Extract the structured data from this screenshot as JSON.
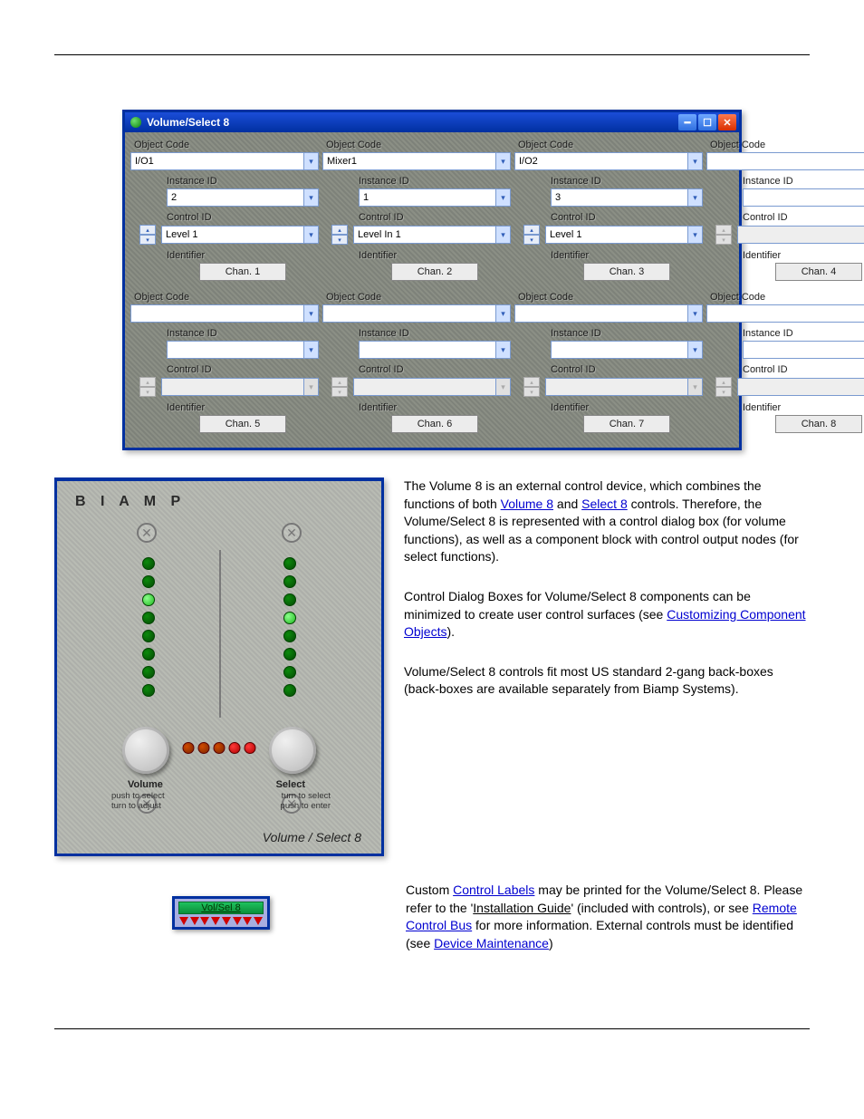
{
  "window": {
    "title": "Volume/Select 8",
    "columns": [
      {
        "objectCode": "I/O1",
        "instanceId": "2",
        "controlId": "Level 1",
        "identifier": "Chan. 1",
        "enabled": true
      },
      {
        "objectCode": "Mixer1",
        "instanceId": "1",
        "controlId": "Level In 1",
        "identifier": "Chan. 2",
        "enabled": true
      },
      {
        "objectCode": "I/O2",
        "instanceId": "3",
        "controlId": "Level 1",
        "identifier": "Chan. 3",
        "enabled": true
      },
      {
        "objectCode": "",
        "instanceId": "",
        "controlId": "",
        "identifier": "Chan. 4",
        "enabled": false
      },
      {
        "objectCode": "",
        "instanceId": "",
        "controlId": "",
        "identifier": "Chan. 5",
        "enabled": false
      },
      {
        "objectCode": "",
        "instanceId": "",
        "controlId": "",
        "identifier": "Chan. 6",
        "enabled": false
      },
      {
        "objectCode": "",
        "instanceId": "",
        "controlId": "",
        "identifier": "Chan. 7",
        "enabled": false
      },
      {
        "objectCode": "",
        "instanceId": "",
        "controlId": "",
        "identifier": "Chan. 8",
        "enabled": false
      }
    ],
    "labels": {
      "objectCode": "Object Code",
      "instanceId": "Instance ID",
      "controlId": "Control ID",
      "identifier": "Identifier"
    }
  },
  "hardware": {
    "brand": "B I A M P",
    "leftLeds": [
      false,
      false,
      true,
      false,
      false,
      false,
      false,
      false
    ],
    "rightLeds": [
      false,
      false,
      false,
      true,
      false,
      false,
      false,
      false
    ],
    "redLeds": [
      "off",
      "off",
      "off",
      "on",
      "on"
    ],
    "volumeLabel": "Volume",
    "selectLabel": "Select",
    "hintLeft": "push to select\nturn to adjust",
    "hintRight": "turn to select\npush to enter",
    "footer": "Volume / Select 8"
  },
  "block": {
    "label": "Vol/Sel 8",
    "outputs": 8
  },
  "paragraphs": {
    "p1a": "The Volume 8 is an external control device, which combines the functions of both ",
    "link_v8": "Volume 8",
    "p1b": " and ",
    "link_s8": "Select 8",
    "p1c": " controls. Therefore, the Volume/Select 8 is represented with a control dialog box (for volume functions), as well as a component block with control output nodes (for select functions).",
    "p2a": "Control Dialog Boxes for Volume/Select 8 components can be minimized to create user control surfaces (see ",
    "link_cco": "Customizing Component Objects",
    "p2b": ").",
    "p3": "Volume/Select 8 controls fit most US standard 2-gang back-boxes (back-boxes are available separately from Biamp Systems).",
    "p4a": "Custom ",
    "link_cl": "Control Labels",
    "p4b": " may be printed for the Volume/Select 8. Please refer to the '",
    "ig": "Installation Guide",
    "p4c": "' (included with controls), or see ",
    "link_rcb": "Remote Control Bus",
    "p4d": " for more information. External controls must be identified (see ",
    "link_dm": "Device Maintenance",
    "p4e": ")"
  }
}
